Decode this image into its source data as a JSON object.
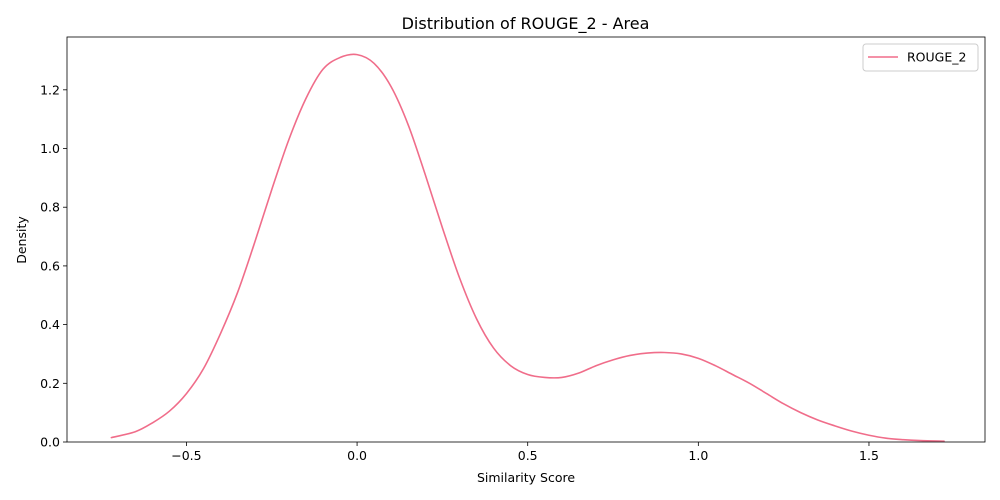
{
  "chart_data": {
    "type": "line",
    "title": "Distribution of ROUGE_2 - Area",
    "xlabel": "Similarity Score",
    "ylabel": "Density",
    "xlim": [
      -0.85,
      1.84
    ],
    "ylim": [
      0.0,
      1.38
    ],
    "xticks": [
      -0.5,
      0.0,
      0.5,
      1.0,
      1.5
    ],
    "xtick_labels": [
      "−0.5",
      "0.0",
      "0.5",
      "1.0",
      "1.5"
    ],
    "yticks": [
      0.0,
      0.2,
      0.4,
      0.6,
      0.8,
      1.0,
      1.2
    ],
    "ytick_labels": [
      "0.0",
      "0.2",
      "0.4",
      "0.6",
      "0.8",
      "1.0",
      "1.2"
    ],
    "grid": false,
    "legend": {
      "placement": "top-right"
    },
    "series": [
      {
        "name": "ROUGE_2",
        "color": "#f06d8a",
        "x": [
          -0.72,
          -0.65,
          -0.6,
          -0.55,
          -0.5,
          -0.45,
          -0.4,
          -0.35,
          -0.3,
          -0.25,
          -0.2,
          -0.15,
          -0.1,
          -0.05,
          0.0,
          0.05,
          0.1,
          0.15,
          0.2,
          0.25,
          0.3,
          0.35,
          0.4,
          0.45,
          0.5,
          0.55,
          0.6,
          0.65,
          0.7,
          0.75,
          0.8,
          0.85,
          0.9,
          0.95,
          1.0,
          1.05,
          1.1,
          1.15,
          1.2,
          1.25,
          1.3,
          1.35,
          1.4,
          1.45,
          1.5,
          1.55,
          1.6,
          1.65,
          1.72
        ],
        "y": [
          0.015,
          0.035,
          0.065,
          0.105,
          0.165,
          0.25,
          0.37,
          0.51,
          0.68,
          0.86,
          1.03,
          1.17,
          1.27,
          1.31,
          1.32,
          1.29,
          1.21,
          1.08,
          0.91,
          0.73,
          0.56,
          0.42,
          0.32,
          0.26,
          0.23,
          0.22,
          0.22,
          0.235,
          0.26,
          0.28,
          0.295,
          0.303,
          0.305,
          0.3,
          0.285,
          0.26,
          0.23,
          0.2,
          0.165,
          0.13,
          0.1,
          0.075,
          0.055,
          0.037,
          0.023,
          0.013,
          0.008,
          0.005,
          0.003
        ]
      }
    ]
  }
}
